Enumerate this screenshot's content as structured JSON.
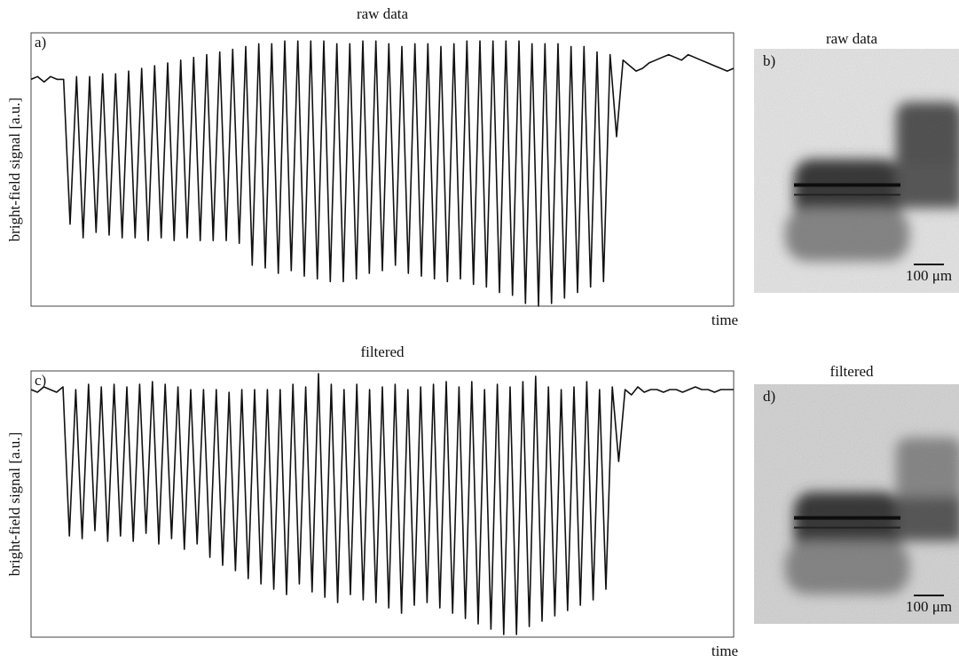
{
  "chart_data": [
    {
      "type": "line",
      "title": "raw data",
      "panel_label": "a)",
      "y_label": "bright-field signal [a.u.]",
      "x_label": "time",
      "color": "#111111",
      "ylim": [
        0,
        100
      ],
      "values": [
        83,
        84,
        82,
        84,
        83,
        83,
        30,
        84,
        25,
        84,
        27,
        85,
        26,
        85,
        25,
        86,
        25,
        87,
        24,
        88,
        25,
        89,
        24,
        90,
        25,
        91,
        24,
        92,
        24,
        93,
        24,
        94,
        23,
        95,
        15,
        96,
        14,
        96,
        12,
        97,
        13,
        97,
        11,
        97,
        10,
        97,
        9,
        96,
        9,
        96,
        10,
        97,
        12,
        97,
        13,
        96,
        15,
        95,
        12,
        96,
        11,
        96,
        10,
        95,
        9,
        96,
        10,
        97,
        8,
        97,
        7,
        97,
        5,
        97,
        4,
        97,
        1,
        96,
        0,
        96,
        1,
        96,
        3,
        95,
        5,
        95,
        7,
        93,
        9,
        92,
        62,
        90,
        88,
        86,
        87,
        89,
        90,
        91,
        92,
        91,
        90,
        92,
        91,
        90,
        89,
        88,
        87,
        86,
        87
      ]
    },
    {
      "type": "line",
      "title": "filtered",
      "panel_label": "c)",
      "y_label": "bright-field signal [a.u.]",
      "x_label": "time",
      "color": "#111111",
      "ylim": [
        0,
        100
      ],
      "values": [
        93,
        92,
        94,
        93,
        92,
        94,
        38,
        93,
        37,
        95,
        40,
        94,
        36,
        95,
        38,
        94,
        36,
        95,
        39,
        96,
        35,
        95,
        37,
        94,
        33,
        93,
        35,
        93,
        30,
        93,
        27,
        92,
        25,
        93,
        22,
        93,
        20,
        93,
        18,
        93,
        16,
        95,
        20,
        94,
        17,
        99,
        15,
        95,
        13,
        93,
        16,
        95,
        14,
        93,
        13,
        94,
        11,
        95,
        9,
        93,
        12,
        94,
        13,
        95,
        11,
        96,
        9,
        94,
        7,
        96,
        5,
        93,
        3,
        95,
        1,
        94,
        1,
        96,
        4,
        98,
        6,
        94,
        8,
        93,
        10,
        94,
        12,
        96,
        14,
        93,
        18,
        94,
        66,
        93,
        91,
        94,
        92,
        93,
        93,
        92,
        93,
        93,
        92,
        93,
        94,
        93,
        93,
        92,
        93,
        93,
        93
      ]
    }
  ],
  "images": [
    {
      "title": "raw data",
      "panel_label": "b)",
      "scale_bar": "100 μm"
    },
    {
      "title": "filtered",
      "panel_label": "d)",
      "scale_bar": "100 μm"
    }
  ]
}
